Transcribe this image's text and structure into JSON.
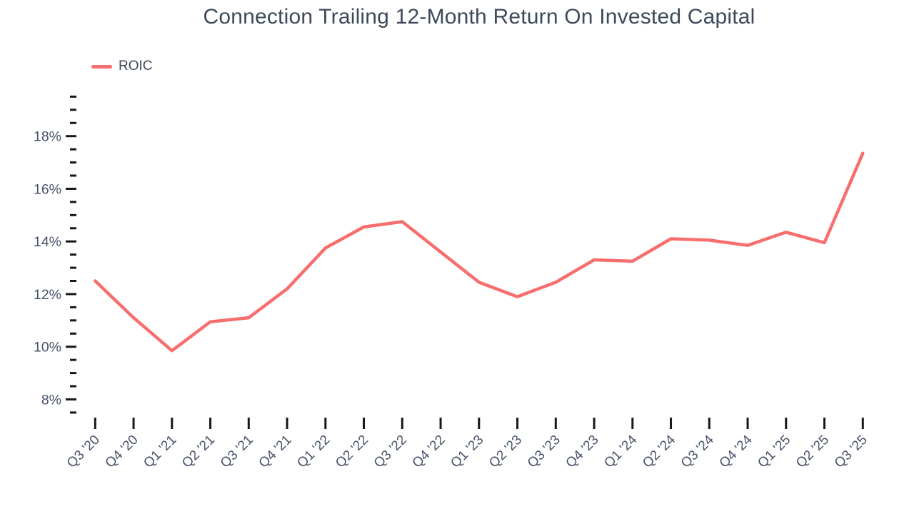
{
  "chart_data": {
    "type": "line",
    "title": "Connection Trailing 12-Month Return On Invested Capital",
    "categories": [
      "Q3 '20",
      "Q4 '20",
      "Q1 '21",
      "Q2 '21",
      "Q3 '21",
      "Q4 '21",
      "Q1 '22",
      "Q2 '22",
      "Q3 '22",
      "Q4 '22",
      "Q1 '23",
      "Q2 '23",
      "Q3 '23",
      "Q4 '23",
      "Q1 '24",
      "Q2 '24",
      "Q3 '24",
      "Q4 '24",
      "Q1 '25",
      "Q2 '25",
      "Q3 '25"
    ],
    "series": [
      {
        "name": "ROIC",
        "color": "#F76E6E",
        "values": [
          12.5,
          11.1,
          9.85,
          10.95,
          11.1,
          12.2,
          13.75,
          14.55,
          14.75,
          13.6,
          12.45,
          11.9,
          12.45,
          13.3,
          13.25,
          14.1,
          14.05,
          13.85,
          14.35,
          13.95,
          17.35
        ]
      }
    ],
    "xlabel": "",
    "ylabel": "",
    "y_axis": {
      "unit": "%",
      "range": [
        7.5,
        19.5
      ],
      "minor_tick_step": 0.5,
      "major_ticks": [
        8,
        10,
        12,
        14,
        16,
        18
      ],
      "tick_labels": [
        "8%",
        "10%",
        "12%",
        "14%",
        "16%",
        "18%"
      ]
    },
    "grid": false,
    "legend_position": "top-left"
  },
  "colors": {
    "line": "#F76E6E",
    "title_text": "#3E4A5A",
    "axis_label_text": "#48536A",
    "tick_mark": "#14171D",
    "background": "#FFFFFF"
  }
}
